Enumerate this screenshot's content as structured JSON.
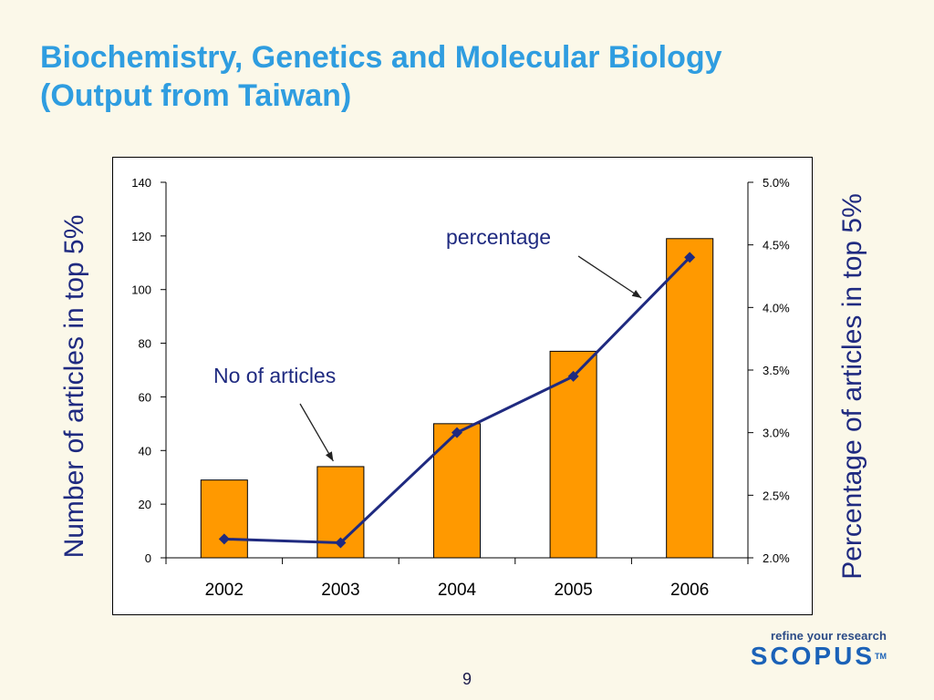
{
  "title": {
    "line1": "Biochemistry, Genetics and Molecular Biology",
    "line2": "(Output from Taiwan)"
  },
  "chart_data": {
    "type": "bar",
    "categories": [
      "2002",
      "2003",
      "2004",
      "2005",
      "2006"
    ],
    "series": [
      {
        "name": "No of articles",
        "type": "bar",
        "axis": "left",
        "values": [
          29,
          34,
          50,
          77,
          119
        ],
        "color": "#ff9900"
      },
      {
        "name": "percentage",
        "type": "line",
        "axis": "right",
        "values": [
          2.15,
          2.12,
          3.0,
          3.45,
          4.4
        ],
        "color": "#1f2a80"
      }
    ],
    "ylabel": "Number of articles in top 5%",
    "ylabel_right": "Percentage of articles in top 5%",
    "ylim": [
      0,
      140
    ],
    "ylim_right": [
      2.0,
      5.0
    ],
    "yticks": [
      "0",
      "20",
      "40",
      "60",
      "80",
      "100",
      "120",
      "140"
    ],
    "yticks_right": [
      "2.0%",
      "2.5%",
      "3.0%",
      "3.5%",
      "4.0%",
      "4.5%",
      "5.0%"
    ],
    "annotations": [
      {
        "text": "No of articles",
        "target_category": "2003",
        "target_series": "No of articles"
      },
      {
        "text": "percentage",
        "target_category": "2006",
        "target_series": "percentage"
      }
    ],
    "grid": false,
    "legend": "none"
  },
  "footer": {
    "brand_tagline": "refine your research",
    "brand_name": "SCOPUS",
    "brand_tm": "TM",
    "page_number": "9"
  },
  "colors": {
    "background": "#fbf8e9",
    "title": "#2f9de0",
    "bar_fill": "#ff9900",
    "line": "#1f2a80",
    "brand": "#1b62b8"
  }
}
